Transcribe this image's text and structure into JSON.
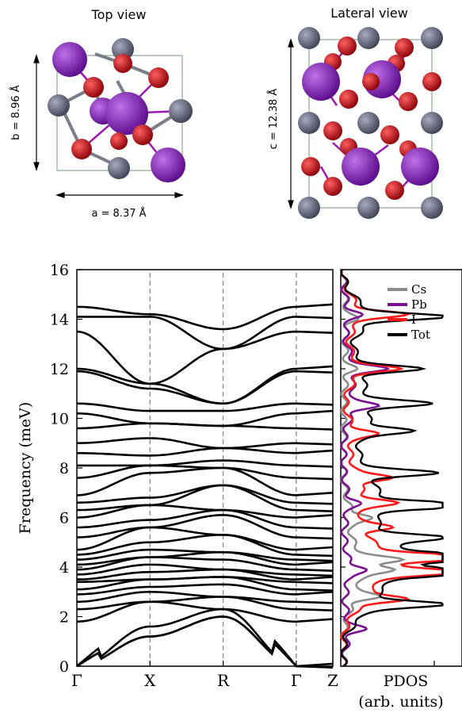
{
  "top_view": {
    "title": "Top view",
    "b_label": "b =  8.96 Å",
    "a_label": "a =  8.37 Å"
  },
  "lateral_view": {
    "title": "Lateral view",
    "c_label": "c =  12.38 Å"
  },
  "colors": {
    "Cs": "#5c5e70",
    "Pb": "#7a1cb0",
    "I": "#c8000c",
    "Tot": "#000000",
    "Cs_pdos": "#8c8c8c",
    "Pb_pdos": "#7a1090",
    "I_pdos": "#ff1a1a"
  },
  "chart_data": [
    {
      "type": "line",
      "title": "",
      "xlabel": "",
      "ylabel": "Frequency (meV)",
      "ylim": [
        0,
        16
      ],
      "yticks": [
        "0",
        "2",
        "4",
        "6",
        "8",
        "10",
        "12",
        "14",
        "16"
      ],
      "x_labels": [
        "Γ",
        "X",
        "R",
        "Γ",
        "Z"
      ],
      "x_positions": [
        0,
        1,
        2,
        3,
        3.5
      ],
      "grid": false,
      "vertical_dashed_at": [
        1,
        2,
        3
      ],
      "band_energies_at_gamma": [
        0,
        0,
        0,
        1.8,
        2.3,
        2.6,
        2.9,
        3.1,
        3.4,
        3.5,
        3.7,
        3.9,
        4.1,
        4.3,
        4.5,
        4.7,
        5.2,
        5.6,
        6.0,
        6.3,
        6.6,
        6.9,
        7.6,
        8.1,
        8.6,
        9.0,
        9.6,
        10.2,
        10.6,
        11.9,
        12.0,
        13.5,
        14.1,
        14.5
      ],
      "band_energies_at_X": [
        1.2,
        1.6,
        2.6,
        3.0,
        3.2,
        3.5,
        3.8,
        4.1,
        4.4,
        4.7,
        5.0,
        5.6,
        5.9,
        6.5,
        6.8,
        7.8,
        8.1,
        8.5,
        9.2,
        9.8,
        10.3,
        11.2,
        11.4,
        14.1,
        14.2
      ],
      "band_energies_at_R": [
        2.0,
        2.3,
        2.8,
        3.3,
        3.6,
        3.9,
        4.3,
        4.6,
        5.3,
        6.1,
        6.3,
        7.3,
        8.0,
        8.3,
        8.8,
        9.7,
        10.3,
        10.6,
        12.8,
        13.6
      ]
    },
    {
      "type": "line",
      "title": "",
      "xlabel": "PDOS (arb. units)",
      "xlabel_line1": "PDOS",
      "xlabel_line2": "(arb. units)",
      "ylim": [
        0,
        16
      ],
      "series": [
        {
          "name": "Cs",
          "color": "#8c8c8c",
          "peaks": [
            [
              2.8,
              0.25
            ],
            [
              3.9,
              0.3
            ],
            [
              4.3,
              0.35
            ],
            [
              6.0,
              0.22
            ],
            [
              12.0,
              0.08
            ],
            [
              14.0,
              0.1
            ]
          ]
        },
        {
          "name": "Pb",
          "color": "#7a1090",
          "peaks": [
            [
              1.5,
              0.15
            ],
            [
              3.9,
              0.18
            ],
            [
              6.6,
              0.12
            ],
            [
              10.5,
              0.25
            ],
            [
              12.0,
              0.3
            ],
            [
              14.2,
              0.12
            ]
          ]
        },
        {
          "name": "I",
          "color": "#ff1a1a",
          "peaks": [
            [
              2.7,
              0.45
            ],
            [
              3.8,
              0.7
            ],
            [
              4.4,
              0.95
            ],
            [
              5.6,
              0.3
            ],
            [
              6.6,
              0.35
            ],
            [
              7.6,
              0.35
            ],
            [
              9.4,
              0.25
            ],
            [
              12.0,
              0.4
            ],
            [
              14.2,
              0.45
            ]
          ]
        },
        {
          "name": "Tot",
          "color": "#000000",
          "peaks": [
            [
              2.5,
              0.75
            ],
            [
              3.8,
              1.0
            ],
            [
              4.4,
              1.15
            ],
            [
              5.2,
              0.6
            ],
            [
              6.5,
              1.05
            ],
            [
              7.8,
              0.65
            ],
            [
              9.5,
              0.5
            ],
            [
              10.6,
              0.6
            ],
            [
              12.0,
              0.55
            ],
            [
              14.1,
              0.75
            ]
          ]
        }
      ],
      "legend": [
        "Cs",
        "Pb",
        "I",
        "Tot"
      ],
      "legend_position": "top-right"
    }
  ]
}
